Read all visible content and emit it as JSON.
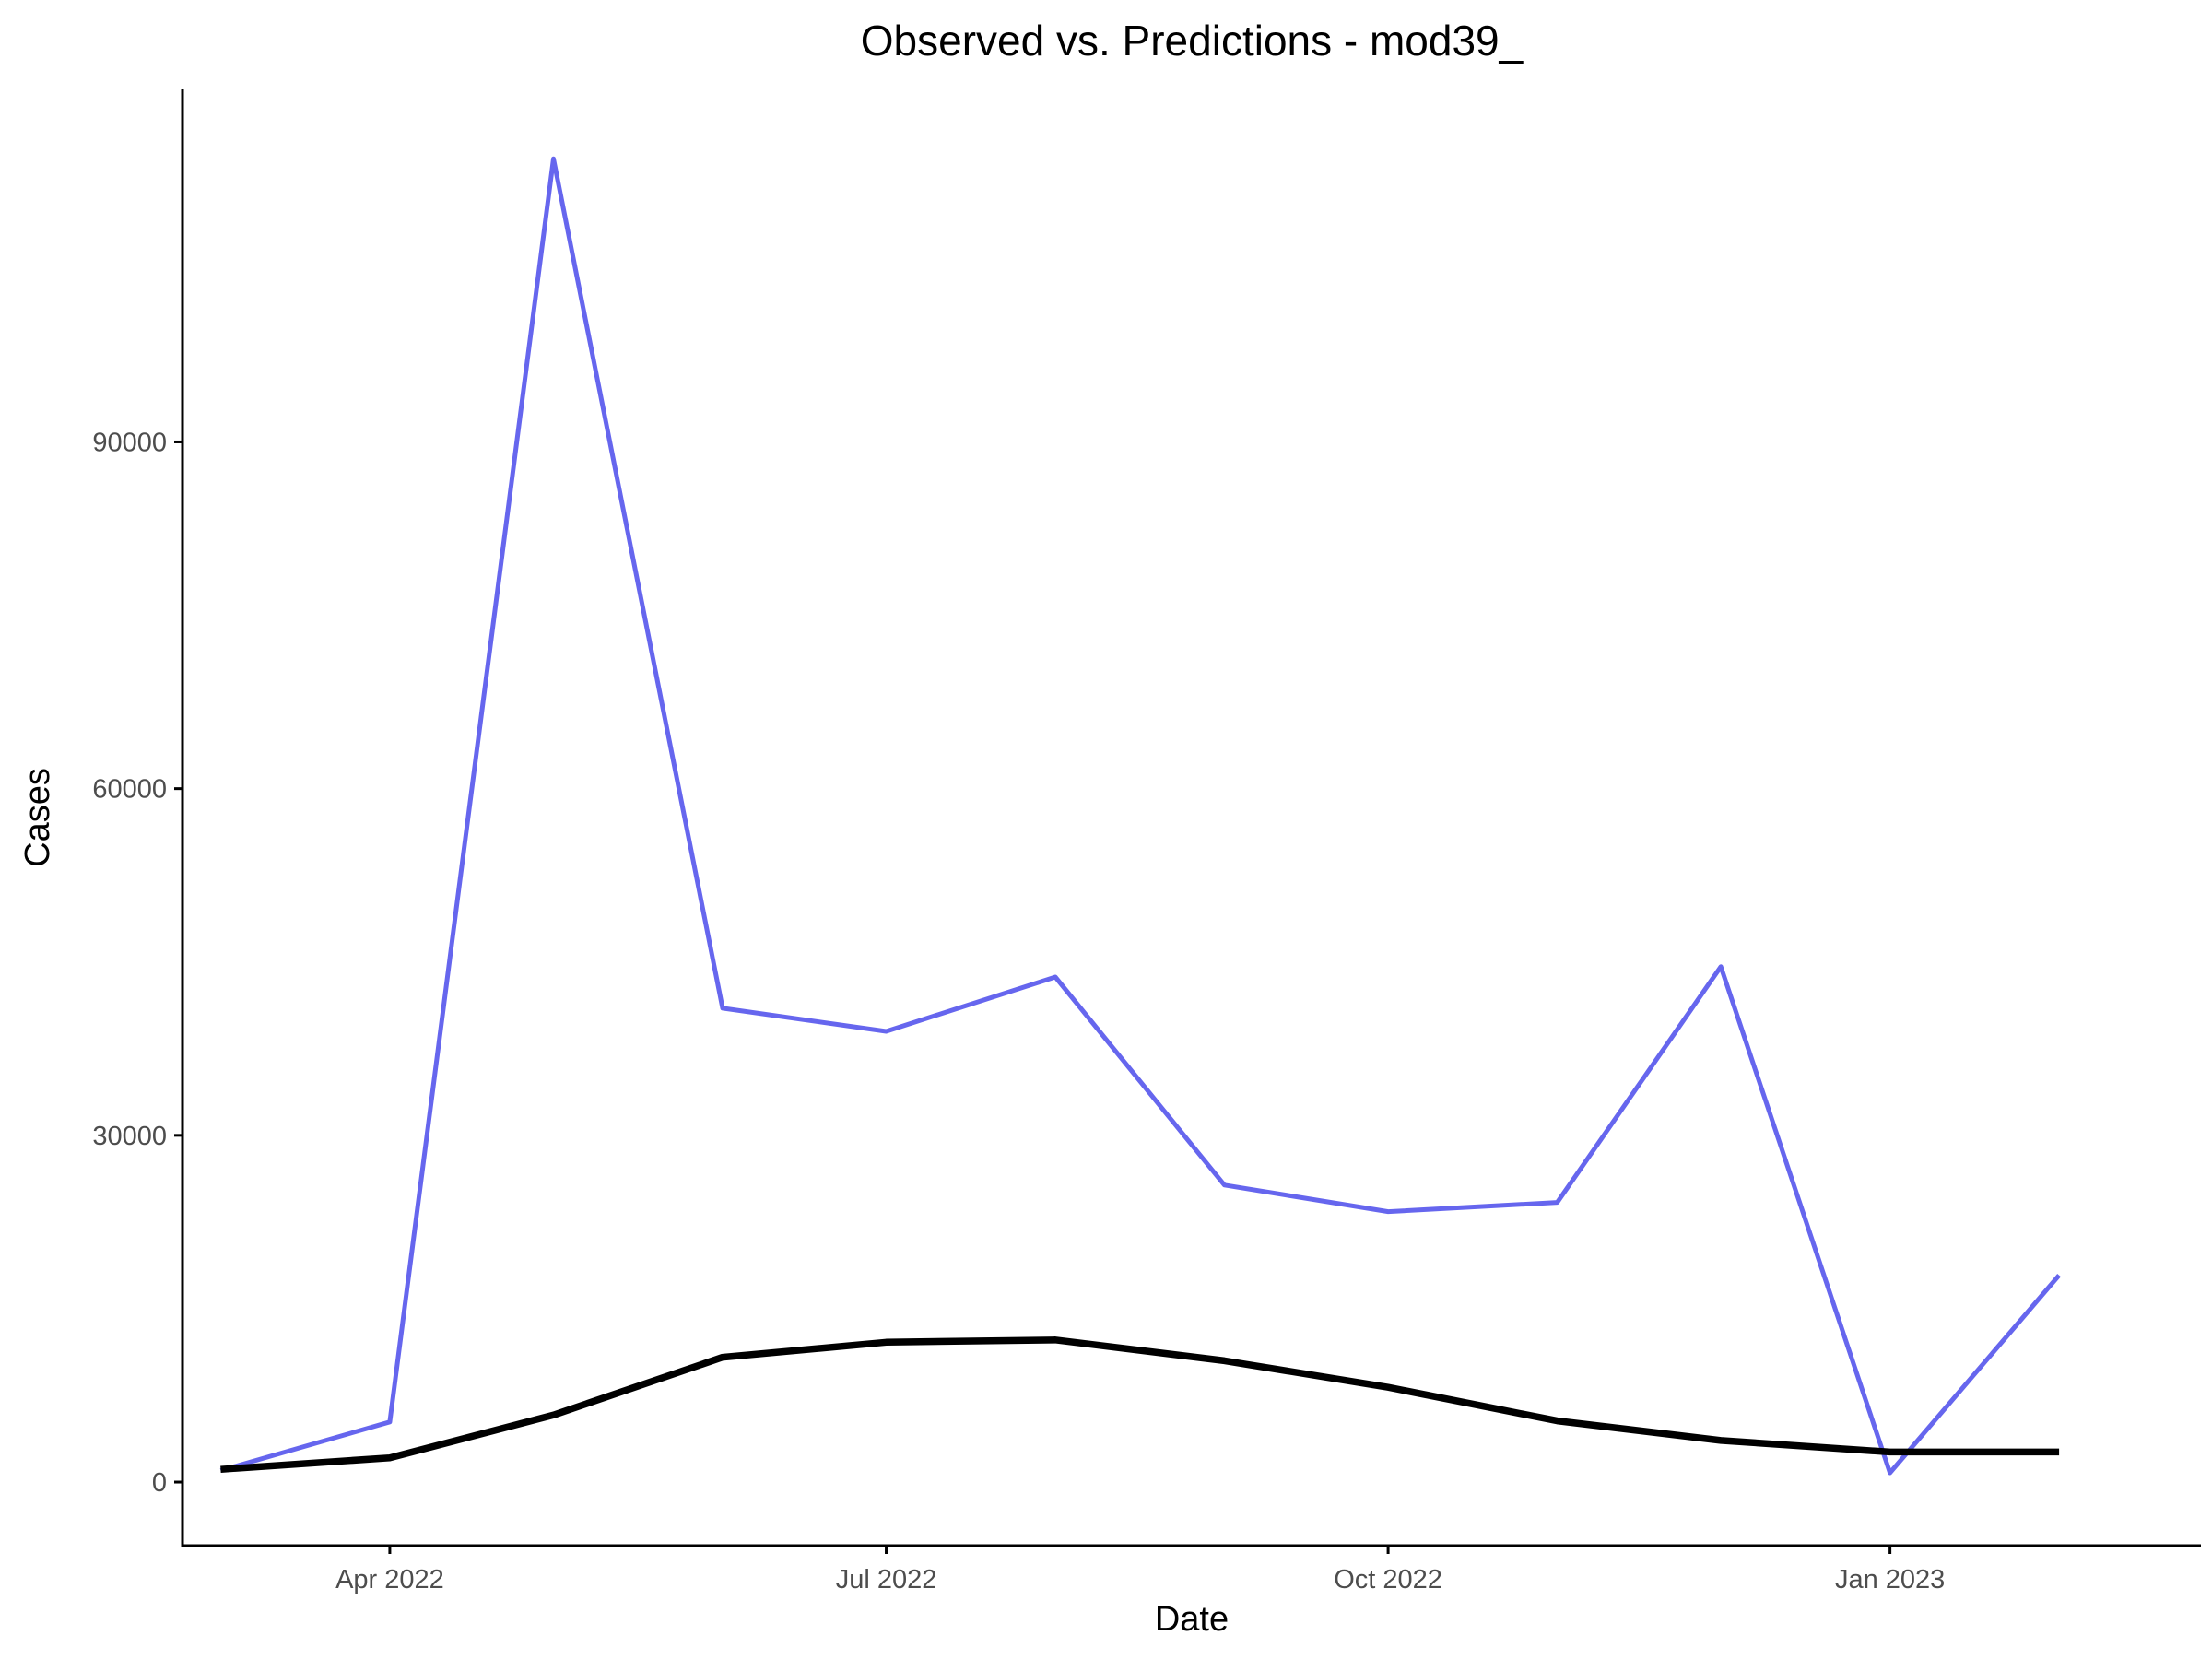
{
  "chart_data": {
    "type": "line",
    "title": "Observed vs. Predictions - mod39_",
    "xlabel": "Date",
    "ylabel": "Cases",
    "x": [
      "2022-03-01",
      "2022-04-01",
      "2022-05-01",
      "2022-06-01",
      "2022-07-01",
      "2022-08-01",
      "2022-09-01",
      "2022-10-01",
      "2022-11-01",
      "2022-12-01",
      "2023-01-01",
      "2023-02-01"
    ],
    "series": [
      {
        "color": "#6666ee",
        "values": [
          1000,
          5200,
          114500,
          41000,
          39000,
          43700,
          25700,
          23400,
          24200,
          44600,
          800,
          17900
        ]
      },
      {
        "color": "#000000",
        "values": [
          1100,
          2100,
          5800,
          10800,
          12100,
          12300,
          10500,
          8200,
          5300,
          3600,
          2600,
          2600
        ]
      }
    ],
    "xlim": [
      "2022-02-22",
      "2023-02-27"
    ],
    "ylim": [
      -5500,
      120500
    ],
    "x_ticks": [
      {
        "date": "2022-04-01",
        "label": "Apr 2022"
      },
      {
        "date": "2022-07-01",
        "label": "Jul 2022"
      },
      {
        "date": "2022-10-01",
        "label": "Oct 2022"
      },
      {
        "date": "2023-01-01",
        "label": "Jan 2023"
      }
    ],
    "y_ticks": [
      {
        "value": 0,
        "label": "0"
      },
      {
        "value": 30000,
        "label": "30000"
      },
      {
        "value": 60000,
        "label": "60000"
      },
      {
        "value": 90000,
        "label": "90000"
      }
    ],
    "grid": false,
    "legend": "none"
  }
}
